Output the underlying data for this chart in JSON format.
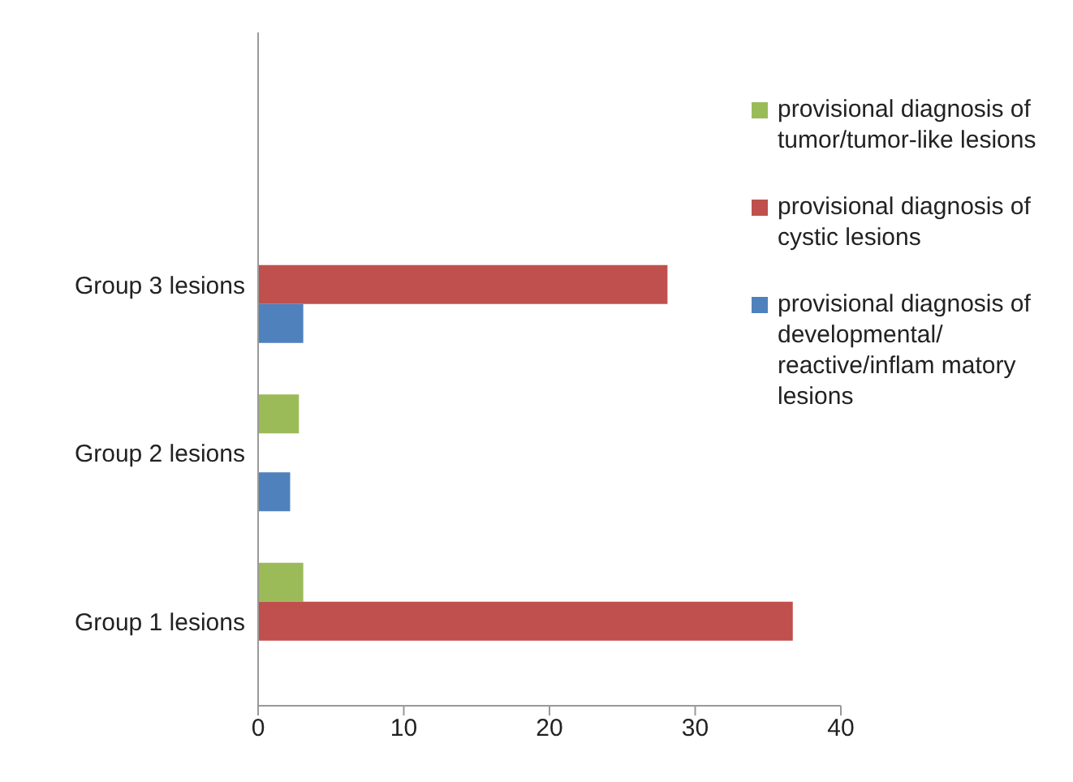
{
  "chart_data": {
    "type": "bar",
    "orientation": "horizontal",
    "categories": [
      null,
      "Group 3 lesions",
      "Group 2 lesions",
      "Group 1 lesions"
    ],
    "series": [
      {
        "name": "provisional diagnosis of tumor/tumor-like lesions",
        "color": "#9bbb59",
        "values": [
          null,
          null,
          2.8,
          3.1
        ]
      },
      {
        "name": "provisional diagnosis of cystic lesions",
        "color": "#c0504d",
        "values": [
          null,
          28.1,
          null,
          36.7
        ]
      },
      {
        "name": "provisional diagnosis of developmental/ reactive/inflam matory lesions",
        "color": "#4f81bd",
        "values": [
          null,
          3.1,
          2.2,
          null
        ]
      }
    ],
    "xlim": [
      0,
      40
    ],
    "xticks": [
      0,
      10,
      20,
      30,
      40
    ],
    "grid": false,
    "legend": "right"
  }
}
